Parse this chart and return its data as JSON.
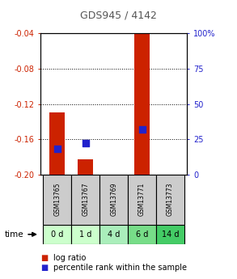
{
  "title": "GDS945 / 4142",
  "categories": [
    "GSM13765",
    "GSM13767",
    "GSM13769",
    "GSM13771",
    "GSM13773"
  ],
  "time_labels": [
    "0 d",
    "1 d",
    "4 d",
    "6 d",
    "14 d"
  ],
  "log_ratios": [
    -0.13,
    -0.183,
    null,
    -0.04,
    null
  ],
  "percentile_ranks": [
    18,
    22,
    null,
    32,
    null
  ],
  "ylim_left": [
    -0.2,
    -0.04
  ],
  "ylim_right": [
    0,
    100
  ],
  "yticks_left": [
    -0.2,
    -0.16,
    -0.12,
    -0.08,
    -0.04
  ],
  "yticks_right": [
    0,
    25,
    50,
    75,
    100
  ],
  "bar_color": "#cc2200",
  "dot_color": "#2222cc",
  "title_color": "#555555",
  "left_tick_color": "#cc2200",
  "right_tick_color": "#2222cc",
  "sample_bg_color": "#cccccc",
  "time_bg_colors": [
    "#ccffcc",
    "#ccffcc",
    "#aaeebb",
    "#77dd88",
    "#44cc66"
  ],
  "bar_width": 0.55,
  "dot_size": 30
}
